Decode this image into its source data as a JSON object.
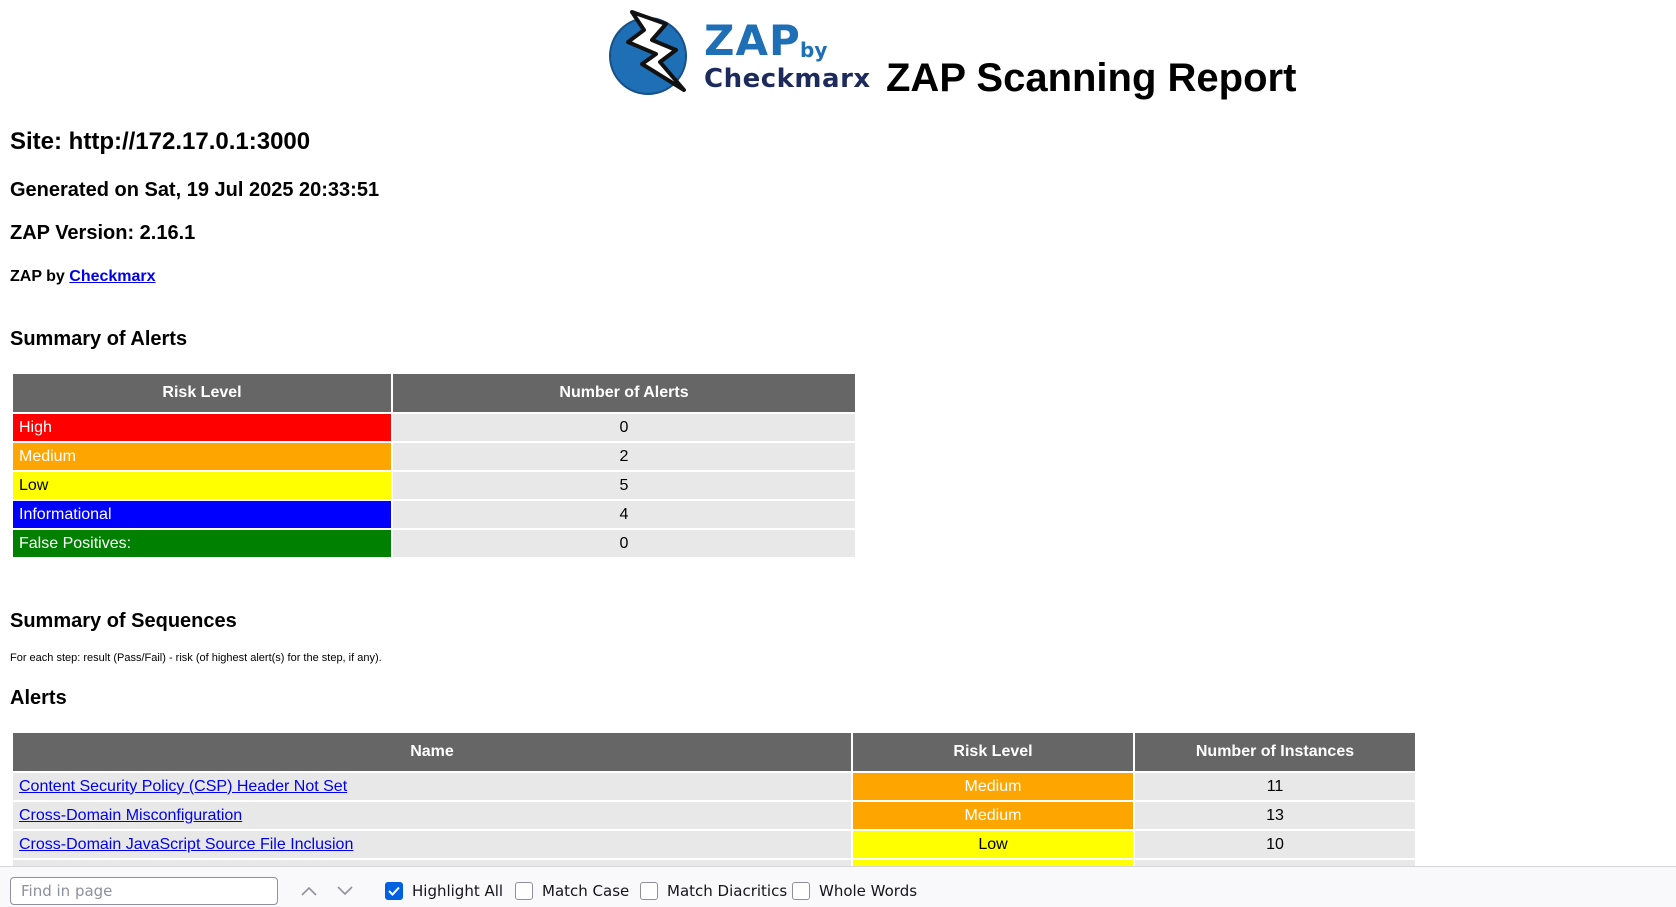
{
  "header": {
    "logo_zap": "ZAP",
    "logo_by": "by",
    "logo_checkmarx": "Checkmarx",
    "title": "ZAP Scanning Report"
  },
  "info": {
    "site": "Site: http://172.17.0.1:3000",
    "generated": "Generated on Sat, 19 Jul 2025 20:33:51",
    "version": "ZAP Version: 2.16.1",
    "by_prefix": "ZAP by ",
    "by_link": "Checkmarx"
  },
  "summary_alerts": {
    "heading": "Summary of Alerts",
    "columns": [
      "Risk Level",
      "Number of Alerts"
    ],
    "rows": [
      {
        "level": "High",
        "count": "0",
        "color": "#ff0000"
      },
      {
        "level": "Medium",
        "count": "2",
        "color": "#ffa500"
      },
      {
        "level": "Low",
        "count": "5",
        "color": "#ffff00"
      },
      {
        "level": "Informational",
        "count": "4",
        "color": "#0000ff"
      },
      {
        "level": "False Positives:",
        "count": "0",
        "color": "#008000"
      }
    ]
  },
  "summary_sequences": {
    "heading": "Summary of Sequences",
    "note": "For each step: result (Pass/Fail) - risk (of highest alert(s) for the step, if any)."
  },
  "alerts": {
    "heading": "Alerts",
    "columns": [
      "Name",
      "Risk Level",
      "Number of Instances"
    ],
    "rows": [
      {
        "name": "Content Security Policy (CSP) Header Not Set",
        "risk": "Medium",
        "instances": "11",
        "color": "#ffa500"
      },
      {
        "name": "Cross-Domain Misconfiguration",
        "risk": "Medium",
        "instances": "13",
        "color": "#ffa500"
      },
      {
        "name": "Cross-Domain JavaScript Source File Inclusion",
        "risk": "Low",
        "instances": "10",
        "color": "#ffff00"
      }
    ]
  },
  "findbar": {
    "placeholder": "Find in page",
    "highlight_all": "Highlight All",
    "highlight_all_checked": true,
    "match_case": "Match Case",
    "match_diacritics": "Match Diacritics",
    "whole_words": "Whole Words",
    "accent_color": "#0061e0"
  }
}
